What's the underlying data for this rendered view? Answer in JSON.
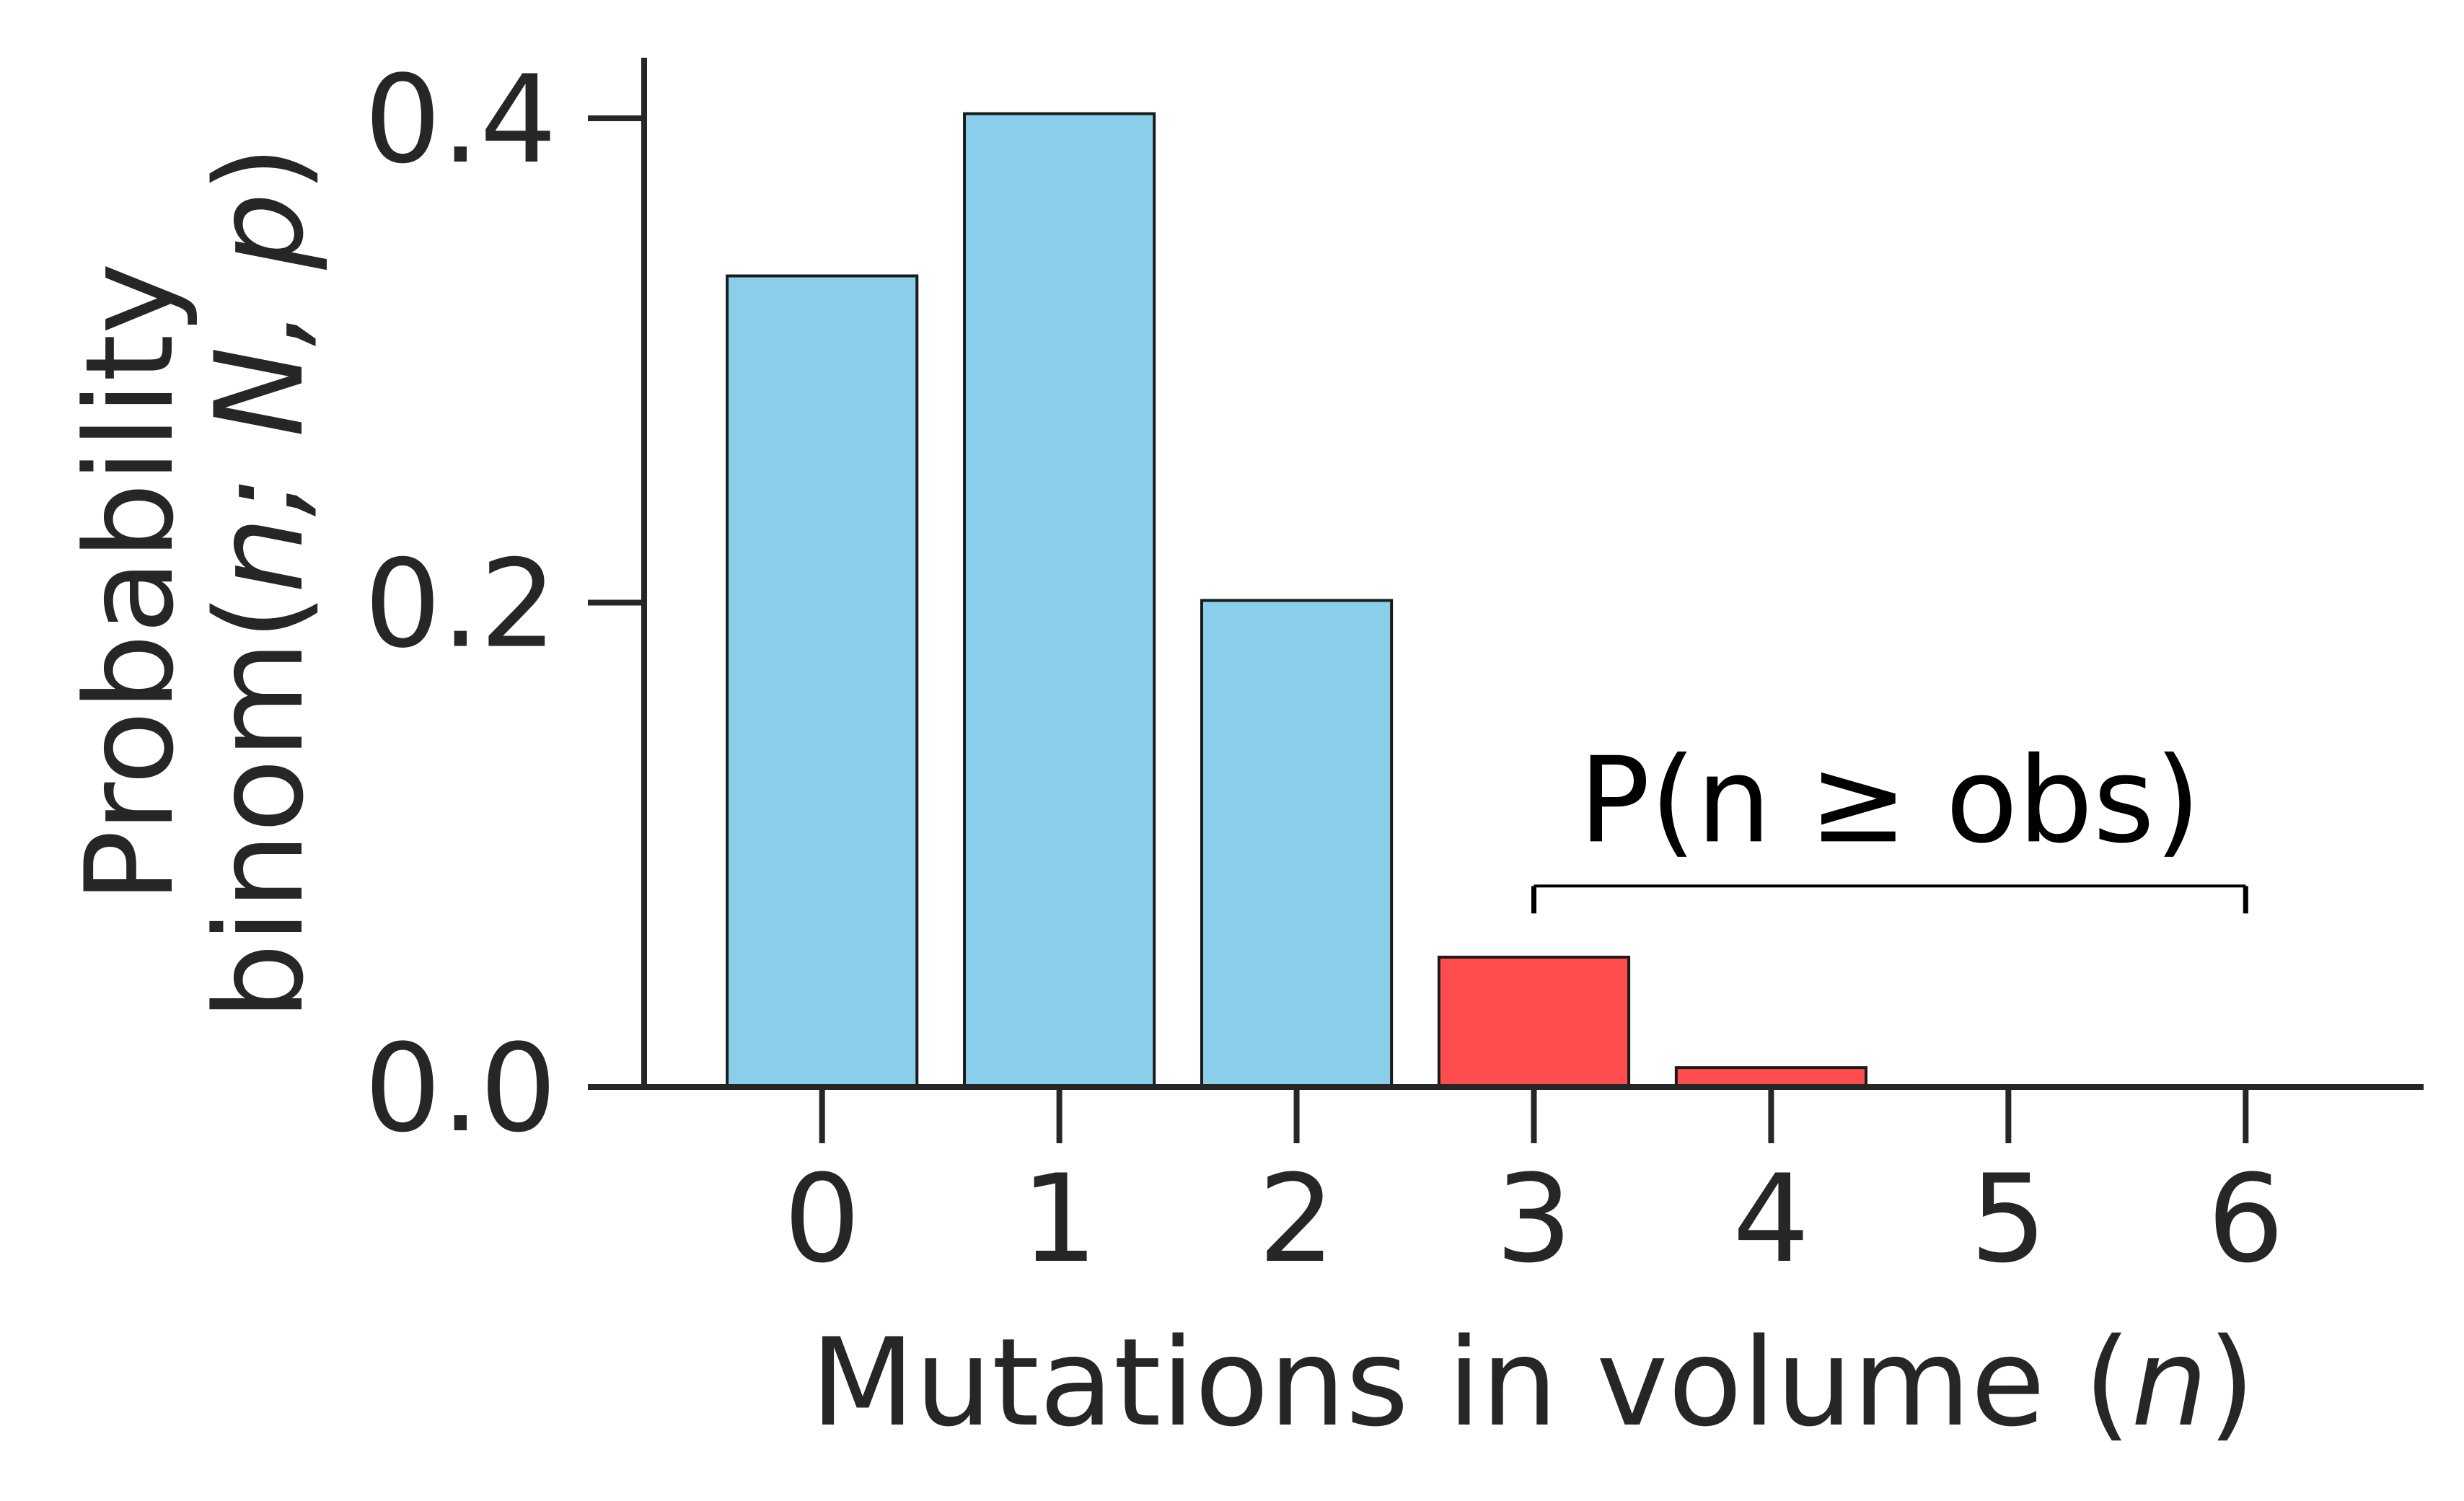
{
  "chart_data": {
    "type": "bar",
    "categories": [
      "0",
      "1",
      "2",
      "3",
      "4",
      "5",
      "6"
    ],
    "x": [
      0,
      1,
      2,
      3,
      4,
      5,
      6
    ],
    "values": [
      0.3349,
      0.4019,
      0.2009,
      0.0536,
      0.008,
      0.0006,
      2e-05
    ],
    "bar_colors": [
      "#89CFE9",
      "#89CFE9",
      "#89CFE9",
      "#FF4C4C",
      "#FF4C4C",
      "#FF4C4C",
      "#FF4C4C"
    ],
    "edge_color": "#1a1a1a",
    "xlabel": {
      "main": "Mutations in volume (",
      "italic": "n",
      "close": ")"
    },
    "ylabel": {
      "line1": "Probability",
      "line2_pre": "binom(",
      "line2_italic": "n; N, p",
      "line2_post": ")"
    },
    "yticks": [
      0.0,
      0.2,
      0.4
    ],
    "ytick_labels": [
      "0.0",
      "0.2",
      "0.4"
    ],
    "xtick_labels": [
      "0",
      "1",
      "2",
      "3",
      "4",
      "5",
      "6"
    ],
    "ylim": [
      0,
      0.425
    ],
    "xlim": [
      -0.75,
      6.75
    ],
    "grid": false,
    "annotation": {
      "text": "P(n ≥ obs)",
      "from_x": 3,
      "to_x": 6,
      "y": 0.083
    }
  }
}
